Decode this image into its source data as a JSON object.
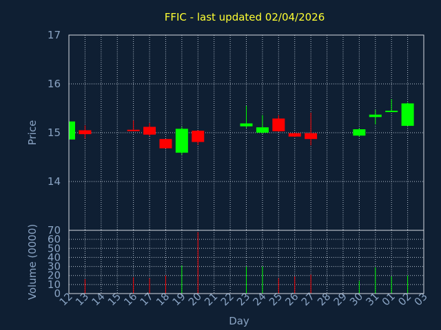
{
  "chart_data": {
    "type": "candlestick",
    "title": "FFIC - last updated 02/04/2026",
    "xlabel": "Day",
    "price_panel": {
      "ylabel": "Price",
      "ylim": [
        13.0,
        17.0
      ],
      "yticks": [
        14,
        15,
        16,
        17
      ]
    },
    "volume_panel": {
      "ylabel": "Volume (0000)",
      "ylim": [
        0,
        70
      ],
      "yticks": [
        0,
        10,
        20,
        30,
        40,
        50,
        60,
        70
      ]
    },
    "x_tick_labels": [
      "12",
      "13",
      "14",
      "15",
      "16",
      "17",
      "18",
      "19",
      "20",
      "21",
      "22",
      "23",
      "24",
      "25",
      "26",
      "27",
      "28",
      "29",
      "30",
      "31",
      "01",
      "02",
      "03"
    ],
    "grid": true,
    "colors": {
      "up": "#00ff00",
      "down": "#ff0000",
      "title": "#ffff33",
      "axis_text": "#8aa4c4",
      "background": "#0f1f33"
    },
    "series": [
      {
        "day": "12",
        "open": 14.86,
        "high": 15.24,
        "low": 14.84,
        "close": 15.23,
        "volume": 0
      },
      {
        "day": "13",
        "open": 15.05,
        "high": 15.15,
        "low": 14.88,
        "close": 14.97,
        "volume": 16
      },
      {
        "day": "16",
        "open": 15.06,
        "high": 15.25,
        "low": 15.03,
        "close": 15.04,
        "volume": 18
      },
      {
        "day": "17",
        "open": 15.12,
        "high": 15.2,
        "low": 14.93,
        "close": 14.96,
        "volume": 17
      },
      {
        "day": "18",
        "open": 14.87,
        "high": 14.87,
        "low": 14.68,
        "close": 14.68,
        "volume": 20
      },
      {
        "day": "19",
        "open": 14.59,
        "high": 15.12,
        "low": 14.55,
        "close": 15.08,
        "volume": 31
      },
      {
        "day": "20",
        "open": 15.04,
        "high": 15.05,
        "low": 14.75,
        "close": 14.81,
        "volume": 68
      },
      {
        "day": "23",
        "open": 15.13,
        "high": 15.55,
        "low": 15.1,
        "close": 15.19,
        "volume": 30
      },
      {
        "day": "24",
        "open": 15.0,
        "high": 15.36,
        "low": 14.98,
        "close": 15.11,
        "volume": 30
      },
      {
        "day": "25",
        "open": 15.29,
        "high": 15.36,
        "low": 15.02,
        "close": 15.03,
        "volume": 17
      },
      {
        "day": "26",
        "open": 14.99,
        "high": 15.0,
        "low": 14.91,
        "close": 14.92,
        "volume": 19
      },
      {
        "day": "27",
        "open": 14.99,
        "high": 15.41,
        "low": 14.74,
        "close": 14.87,
        "volume": 21
      },
      {
        "day": "30",
        "open": 14.94,
        "high": 15.09,
        "low": 14.92,
        "close": 15.07,
        "volume": 14
      },
      {
        "day": "31",
        "open": 15.32,
        "high": 15.47,
        "low": 15.17,
        "close": 15.37,
        "volume": 29
      },
      {
        "day": "01",
        "open": 15.43,
        "high": 15.69,
        "low": 15.42,
        "close": 15.45,
        "volume": 19
      },
      {
        "day": "02",
        "open": 15.14,
        "high": 15.62,
        "low": 15.14,
        "close": 15.6,
        "volume": 20
      }
    ]
  }
}
